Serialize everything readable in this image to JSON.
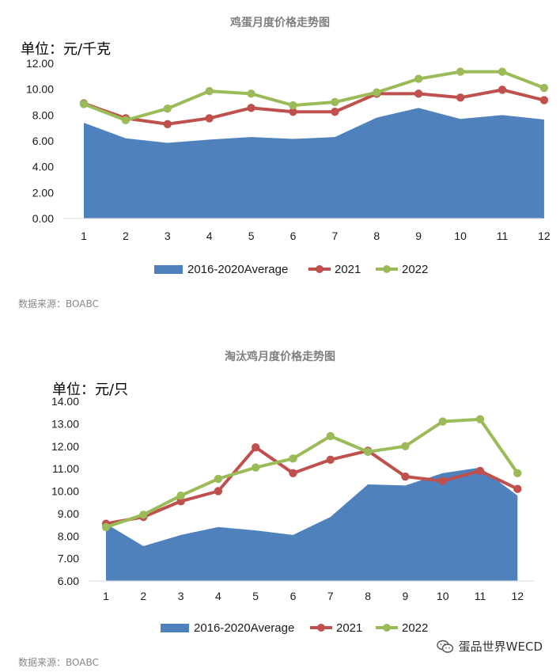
{
  "chart_data": [
    {
      "type": "area",
      "title": "鸡蛋月度价格走势图",
      "unit_label": "单位：元/千克",
      "categories": [
        "1",
        "2",
        "3",
        "4",
        "5",
        "6",
        "7",
        "8",
        "9",
        "10",
        "11",
        "12"
      ],
      "ylim": [
        0,
        12
      ],
      "yticks": [
        "0.00",
        "2.00",
        "4.00",
        "6.00",
        "8.00",
        "10.00",
        "12.00"
      ],
      "series": [
        {
          "name": "2016-2020Average",
          "kind": "area",
          "color": "#4f81bd",
          "values": [
            7.4,
            6.2,
            5.85,
            6.1,
            6.3,
            6.15,
            6.3,
            7.8,
            8.55,
            7.7,
            8.0,
            7.65
          ]
        },
        {
          "name": "2021",
          "kind": "line",
          "color": "#c0504d",
          "values": [
            8.9,
            7.75,
            7.3,
            7.75,
            8.55,
            8.25,
            8.25,
            9.65,
            9.65,
            9.35,
            9.95,
            9.15
          ]
        },
        {
          "name": "2022",
          "kind": "line",
          "color": "#9bbb59",
          "values": [
            8.85,
            7.6,
            8.5,
            9.85,
            9.65,
            8.75,
            9.0,
            9.75,
            10.8,
            11.35,
            11.35,
            10.1
          ]
        }
      ],
      "source": "数据来源：BOABC"
    },
    {
      "type": "area",
      "title": "淘汰鸡月度价格走势图",
      "unit_label": "单位：元/只",
      "categories": [
        "1",
        "2",
        "3",
        "4",
        "5",
        "6",
        "7",
        "8",
        "9",
        "10",
        "11",
        "12"
      ],
      "ylim": [
        6,
        14
      ],
      "yticks": [
        "6.00",
        "7.00",
        "8.00",
        "9.00",
        "10.00",
        "11.00",
        "12.00",
        "13.00",
        "14.00"
      ],
      "series": [
        {
          "name": "2016-2020Average",
          "kind": "area",
          "color": "#4f81bd",
          "values": [
            8.55,
            7.55,
            8.05,
            8.4,
            8.25,
            8.05,
            8.85,
            10.3,
            10.25,
            10.8,
            11.05,
            9.8
          ]
        },
        {
          "name": "2021",
          "kind": "line",
          "color": "#c0504d",
          "values": [
            8.55,
            8.85,
            9.55,
            10.0,
            11.95,
            10.8,
            11.4,
            11.8,
            10.65,
            10.45,
            10.9,
            10.1
          ]
        },
        {
          "name": "2022",
          "kind": "line",
          "color": "#9bbb59",
          "values": [
            8.4,
            8.95,
            9.8,
            10.55,
            11.05,
            11.45,
            12.45,
            11.75,
            12.0,
            13.1,
            13.2,
            10.8
          ]
        }
      ],
      "source": "数据来源：BOABC"
    }
  ],
  "watermark": {
    "text": "蛋品世界WECD",
    "icon": "wechat-icon"
  }
}
